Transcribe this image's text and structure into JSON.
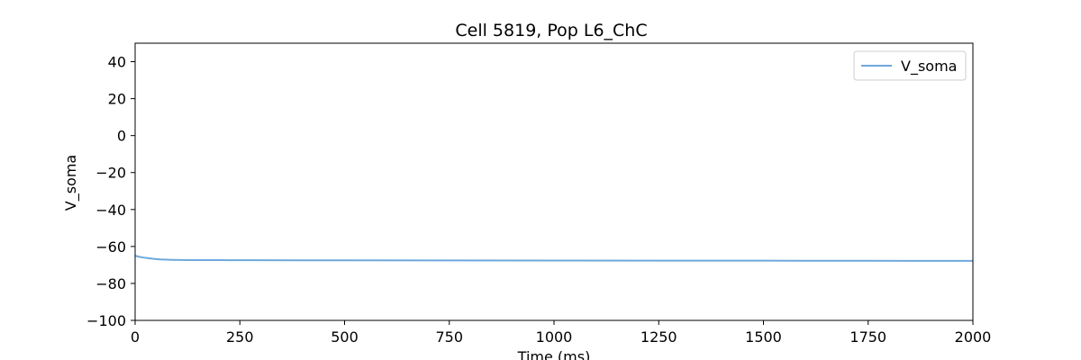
{
  "chart_data": {
    "type": "line",
    "title": "Cell 5819, Pop L6_ChC",
    "xlabel": "Time (ms)",
    "ylabel": "V_soma",
    "xlim": [
      0,
      2000
    ],
    "ylim": [
      -100,
      50
    ],
    "xticks": [
      0,
      250,
      500,
      750,
      1000,
      1250,
      1500,
      1750,
      2000
    ],
    "xtick_labels": [
      "0",
      "250",
      "500",
      "750",
      "1000",
      "1250",
      "1500",
      "1750",
      "2000"
    ],
    "yticks": [
      -100,
      -80,
      -60,
      -40,
      -20,
      0,
      20,
      40
    ],
    "ytick_labels": [
      "−100",
      "−80",
      "−60",
      "−40",
      "−20",
      "0",
      "20",
      "40"
    ],
    "grid": false,
    "legend": "top-right",
    "series": [
      {
        "name": "V_soma",
        "color": "#6fa8dc",
        "x": [
          0,
          10,
          20,
          30,
          40,
          50,
          60,
          75,
          90,
          110,
          130,
          160,
          200,
          300,
          400,
          500,
          750,
          1000,
          1250,
          1500,
          1750,
          2000
        ],
        "y": [
          -65.0,
          -65.6,
          -66.0,
          -66.3,
          -66.6,
          -66.8,
          -67.0,
          -67.15,
          -67.25,
          -67.32,
          -67.36,
          -67.38,
          -67.4,
          -67.45,
          -67.48,
          -67.5,
          -67.55,
          -67.6,
          -67.65,
          -67.7,
          -67.75,
          -67.8
        ]
      }
    ]
  }
}
